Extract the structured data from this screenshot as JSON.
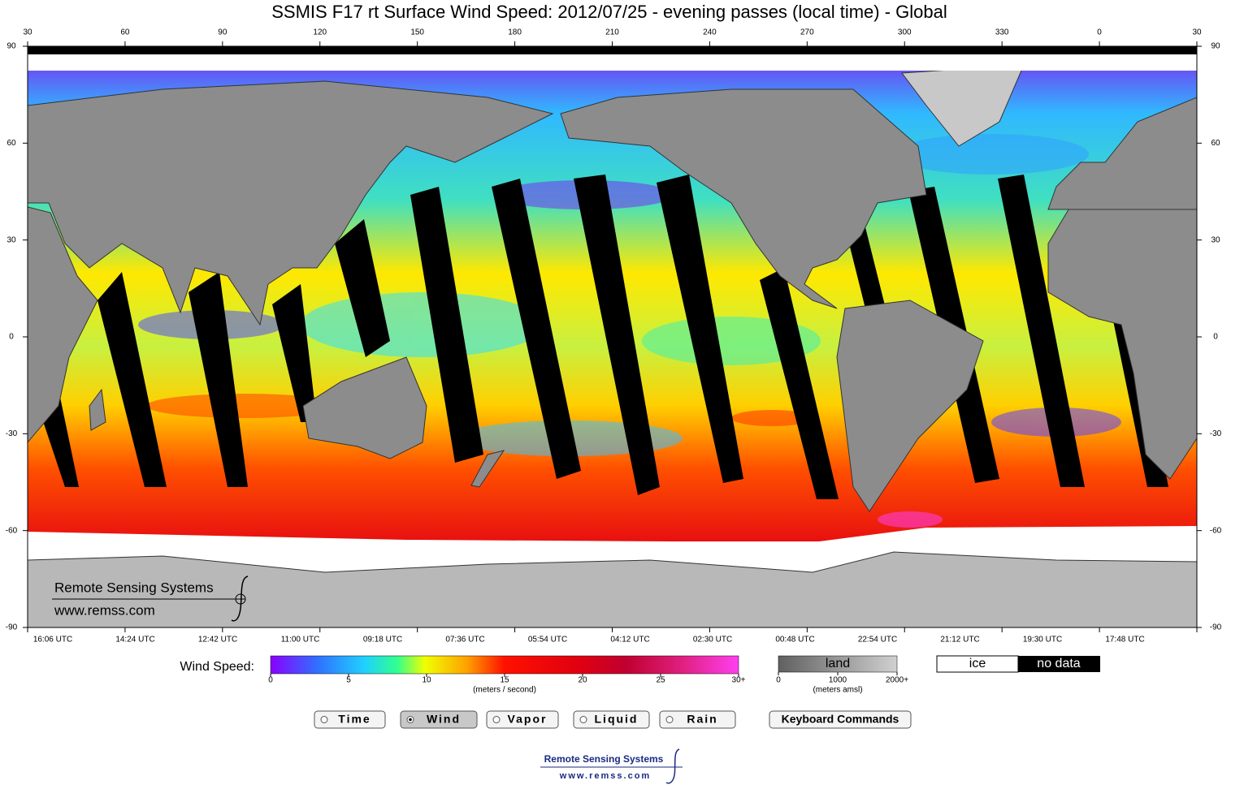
{
  "title": "SSMIS F17 rt Surface Wind Speed: 2012/07/25 - evening passes (local time) - Global",
  "map": {
    "longitude_ticks": [
      30,
      60,
      90,
      120,
      150,
      180,
      210,
      240,
      270,
      300,
      330,
      0,
      30
    ],
    "lat_lim": [
      -90,
      90
    ],
    "latitude_ticks": [
      90,
      60,
      30,
      0,
      -30,
      -60,
      -90
    ],
    "utc_times": [
      "16:06 UTC",
      "14:24 UTC",
      "12:42 UTC",
      "11:00 UTC",
      "09:18 UTC",
      "07:36 UTC",
      "05:54 UTC",
      "04:12 UTC",
      "02:30 UTC",
      "00:48 UTC",
      "22:54 UTC",
      "21:12 UTC",
      "19:30 UTC",
      "17:48 UTC"
    ]
  },
  "logo": {
    "name": "Remote Sensing Systems",
    "url": "www.remss.com"
  },
  "legend": {
    "label": "Wind Speed:",
    "wind_lim": [
      0,
      30
    ],
    "wind_ticks": [
      0,
      5,
      10,
      15,
      20,
      25,
      {
        "value": 30,
        "label": "30+"
      }
    ],
    "wind_units": "(meters / second)",
    "land_label": "land",
    "land_lim": [
      0,
      2000
    ],
    "land_ticks": [
      0,
      1000,
      {
        "value": 2000,
        "label": "2000+"
      }
    ],
    "land_units": "(meters amsl)",
    "ice": "ice",
    "no_data": "no data"
  },
  "buttons": [
    "Time",
    "Wind",
    "Vapor",
    "Liquid",
    "Rain"
  ],
  "selected_button": "Wind",
  "keyboard_button": "Keyboard Commands"
}
